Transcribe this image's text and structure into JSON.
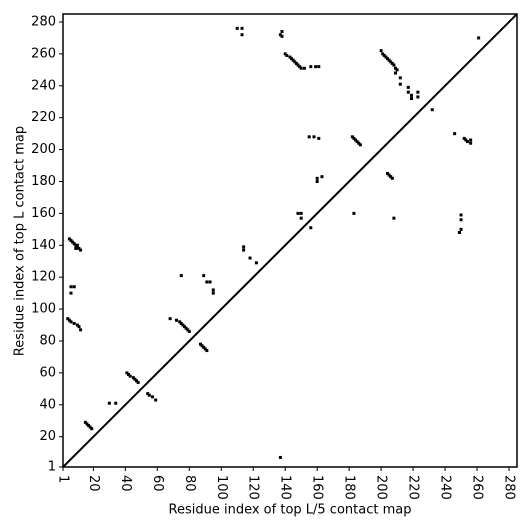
{
  "chart_data": {
    "type": "scatter",
    "xlabel": "Residue index of top L/5 contact map",
    "ylabel": "Residue index of top L contact map",
    "xlim": [
      1,
      285
    ],
    "ylim": [
      1,
      285
    ],
    "xticks": [
      1,
      20,
      40,
      60,
      80,
      100,
      120,
      140,
      160,
      180,
      200,
      220,
      240,
      260,
      280
    ],
    "yticks": [
      1,
      20,
      40,
      60,
      80,
      100,
      120,
      140,
      160,
      180,
      200,
      220,
      240,
      260,
      280
    ],
    "color": "#000000",
    "x": [
      5,
      6,
      7,
      8,
      9,
      10,
      11,
      12,
      9,
      10,
      6,
      8,
      6,
      4,
      5,
      6,
      8,
      10,
      11,
      12,
      15,
      16,
      17,
      18,
      19,
      30,
      34,
      41,
      42,
      43,
      45,
      46,
      47,
      48,
      54,
      55,
      57,
      59,
      68,
      72,
      74,
      75,
      76,
      77,
      78,
      79,
      80,
      75,
      87,
      88,
      89,
      90,
      91,
      89,
      91,
      93,
      95,
      95,
      110,
      113,
      113,
      114,
      114,
      118,
      122,
      137,
      138,
      138,
      140,
      141,
      143,
      144,
      145,
      146,
      147,
      148,
      149,
      150,
      152,
      148,
      150,
      150,
      155,
      158,
      161,
      156,
      156,
      159,
      161,
      160,
      160,
      163,
      137,
      182,
      183,
      184,
      185,
      186,
      187,
      183,
      200,
      201,
      202,
      203,
      204,
      205,
      206,
      207,
      208,
      209,
      210,
      209,
      212,
      212,
      217,
      217,
      219,
      223,
      223,
      219,
      232,
      204,
      205,
      206,
      207,
      208,
      246,
      250,
      250,
      250,
      249,
      252,
      253,
      254,
      256,
      256,
      261
    ],
    "y": [
      144,
      143,
      142,
      141,
      140,
      139,
      138,
      137,
      138,
      140,
      114,
      114,
      110,
      94,
      93,
      92,
      91,
      90,
      89,
      87,
      29,
      28,
      27,
      26,
      25,
      41,
      41,
      60,
      59,
      58,
      57,
      56,
      55,
      54,
      47,
      46,
      45,
      43,
      94,
      93,
      92,
      91,
      90,
      89,
      88,
      87,
      86,
      121,
      78,
      77,
      76,
      75,
      74,
      121,
      117,
      117,
      112,
      110,
      276,
      276,
      272,
      139,
      137,
      132,
      129,
      272,
      271,
      274,
      260,
      259,
      258,
      257,
      256,
      255,
      254,
      253,
      252,
      251,
      251,
      160,
      160,
      157,
      208,
      208,
      207,
      151,
      252,
      252,
      252,
      182,
      180,
      183,
      7,
      208,
      207,
      206,
      205,
      204,
      203,
      160,
      262,
      260,
      259,
      258,
      257,
      256,
      255,
      254,
      253,
      251,
      250,
      248,
      245,
      241,
      239,
      236,
      234,
      236,
      233,
      232,
      225,
      185,
      184,
      183,
      182,
      157,
      210,
      159,
      156,
      150,
      148,
      207,
      206,
      205,
      204,
      206,
      270
    ]
  }
}
